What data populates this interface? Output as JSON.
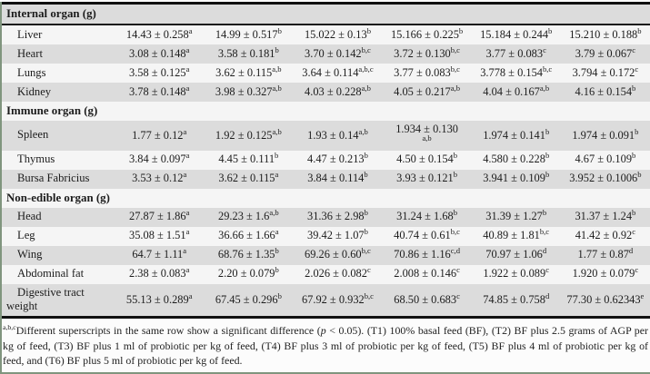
{
  "table": {
    "sections": [
      {
        "header": "Internal organ (g)",
        "rows": [
          {
            "label": "Liver",
            "cells": [
              {
                "v": "14.43 ± 0.258",
                "s": "a"
              },
              {
                "v": "14.99 ± 0.517",
                "s": "b"
              },
              {
                "v": "15.022 ± 0.13",
                "s": "b"
              },
              {
                "v": "15.166 ± 0.225",
                "s": "b"
              },
              {
                "v": "15.184 ± 0.244",
                "s": "b"
              },
              {
                "v": "15.210 ± 0.188",
                "s": "b"
              }
            ]
          },
          {
            "label": "Heart",
            "cells": [
              {
                "v": "3.08 ± 0.148",
                "s": "a"
              },
              {
                "v": "3.58 ± 0.181",
                "s": "b"
              },
              {
                "v": "3.70 ± 0.142",
                "s": "b,c"
              },
              {
                "v": "3.72 ± 0.130",
                "s": "b,c"
              },
              {
                "v": "3.77 ± 0.083",
                "s": "c"
              },
              {
                "v": "3.79 ± 0.067",
                "s": "c"
              }
            ]
          },
          {
            "label": "Lungs",
            "cells": [
              {
                "v": "3.58 ± 0.125",
                "s": "a"
              },
              {
                "v": "3.62 ± 0.115",
                "s": "a,b"
              },
              {
                "v": "3.64 ± 0.114",
                "s": "a,b,c"
              },
              {
                "v": "3.77 ± 0.083",
                "s": "b,c"
              },
              {
                "v": "3.778 ± 0.154",
                "s": "b,c"
              },
              {
                "v": "3.794 ± 0.172",
                "s": "c"
              }
            ]
          },
          {
            "label": "Kidney",
            "cells": [
              {
                "v": "3.78 ± 0.148",
                "s": "a"
              },
              {
                "v": "3.98 ± 0.327",
                "s": "a,b"
              },
              {
                "v": "4.03 ± 0.228",
                "s": "a,b"
              },
              {
                "v": "4.05 ± 0.217",
                "s": "a,b"
              },
              {
                "v": "4.04 ± 0.167",
                "s": "a,b"
              },
              {
                "v": "4.16 ± 0.154",
                "s": "b"
              }
            ]
          }
        ]
      },
      {
        "header": "Immune organ (g)",
        "rows": [
          {
            "label": "Spleen",
            "cells": [
              {
                "v": "1.77 ± 0.12",
                "s": "a"
              },
              {
                "v": "1.92 ± 0.125",
                "s": "a,b"
              },
              {
                "v": "1.93 ± 0.14",
                "s": "a,b"
              },
              {
                "v": "1.934 ± 0.130",
                "s": "a,b",
                "wrap": true
              },
              {
                "v": "1.974 ± 0.141",
                "s": "b"
              },
              {
                "v": "1.974 ± 0.091",
                "s": "b"
              }
            ]
          },
          {
            "label": "Thymus",
            "cells": [
              {
                "v": "3.84 ± 0.097",
                "s": "a"
              },
              {
                "v": "4.45 ± 0.111",
                "s": "b"
              },
              {
                "v": "4.47 ± 0.213",
                "s": "b"
              },
              {
                "v": "4.50 ± 0.154",
                "s": "b"
              },
              {
                "v": "4.580 ± 0.228",
                "s": "b"
              },
              {
                "v": "4.67 ± 0.109",
                "s": "b"
              }
            ]
          },
          {
            "label": "Bursa Fabricius",
            "cells": [
              {
                "v": "3.53 ± 0.12",
                "s": "a"
              },
              {
                "v": "3.62 ± 0.115",
                "s": "a"
              },
              {
                "v": "3.84 ± 0.114",
                "s": "b"
              },
              {
                "v": "3.93 ± 0.121",
                "s": "b"
              },
              {
                "v": "3.941 ± 0.109",
                "s": "b"
              },
              {
                "v": "3.952 ± 0.1006",
                "s": "b"
              }
            ]
          }
        ]
      },
      {
        "header": "Non-edible organ (g)",
        "rows": [
          {
            "label": "Head",
            "cells": [
              {
                "v": "27.87 ± 1.86",
                "s": "a"
              },
              {
                "v": "29.23 ± 1.6",
                "s": "a,b"
              },
              {
                "v": "31.36 ± 2.98",
                "s": "b"
              },
              {
                "v": "31.24 ± 1.68",
                "s": "b"
              },
              {
                "v": "31.39 ± 1.27",
                "s": "b"
              },
              {
                "v": "31.37 ± 1.24",
                "s": "b"
              }
            ]
          },
          {
            "label": "Leg",
            "cells": [
              {
                "v": "35.08 ± 1.51",
                "s": "a"
              },
              {
                "v": "36.66 ± 1.66",
                "s": "a"
              },
              {
                "v": "39.42 ± 1.07",
                "s": "b"
              },
              {
                "v": "40.74 ± 0.61",
                "s": "b,c"
              },
              {
                "v": "40.89 ± 1.81",
                "s": "b,c"
              },
              {
                "v": "41.42 ± 0.92",
                "s": "c"
              }
            ]
          },
          {
            "label": "Wing",
            "cells": [
              {
                "v": "64.7 ± 1.11",
                "s": "a"
              },
              {
                "v": "68.76 ± 1.35",
                "s": "b"
              },
              {
                "v": "69.26 ± 0.60",
                "s": "b,c"
              },
              {
                "v": "70.86 ± 1.16",
                "s": "c,d"
              },
              {
                "v": "70.97 ± 1.06",
                "s": "d"
              },
              {
                "v": "1.77 ± 0.87",
                "s": "d"
              }
            ]
          },
          {
            "label": "Abdominal fat",
            "cells": [
              {
                "v": "2.38 ± 0.083",
                "s": "a"
              },
              {
                "v": "2.20 ± 0.079",
                "s": "b"
              },
              {
                "v": "2.026 ± 0.082",
                "s": "c"
              },
              {
                "v": "2.008 ± 0.146",
                "s": "c"
              },
              {
                "v": "1.922 ± 0.089",
                "s": "c"
              },
              {
                "v": "1.920 ± 0.079",
                "s": "c"
              }
            ]
          },
          {
            "label": "Digestive tract weight",
            "cells": [
              {
                "v": "55.13 ± 0.289",
                "s": "a"
              },
              {
                "v": "67.45 ± 0.296",
                "s": "b"
              },
              {
                "v": "67.92 ± 0.932",
                "s": "b,c"
              },
              {
                "v": "68.50 ± 0.683",
                "s": "c"
              },
              {
                "v": "74.85 ± 0.758",
                "s": "d"
              },
              {
                "v": "77.30 ± 0.62343",
                "s": "e"
              }
            ]
          }
        ]
      }
    ]
  },
  "footnote": {
    "superscript": "a,b,c",
    "before_p": "Different superscripts in the same row show a significant difference (",
    "p_symbol": "p",
    "after_p": " < 0.05). (T1) 100% basal feed (BF), (T2) BF plus 2.5 grams of AGP per kg of feed, (T3) BF plus 1 ml of probiotic per kg of feed, (T4) BF plus 3 ml of probiotic per kg of feed, (T5) BF plus 4 ml of probiotic per kg of feed, and (T6) BF plus 5 ml of probiotic per kg of feed."
  }
}
